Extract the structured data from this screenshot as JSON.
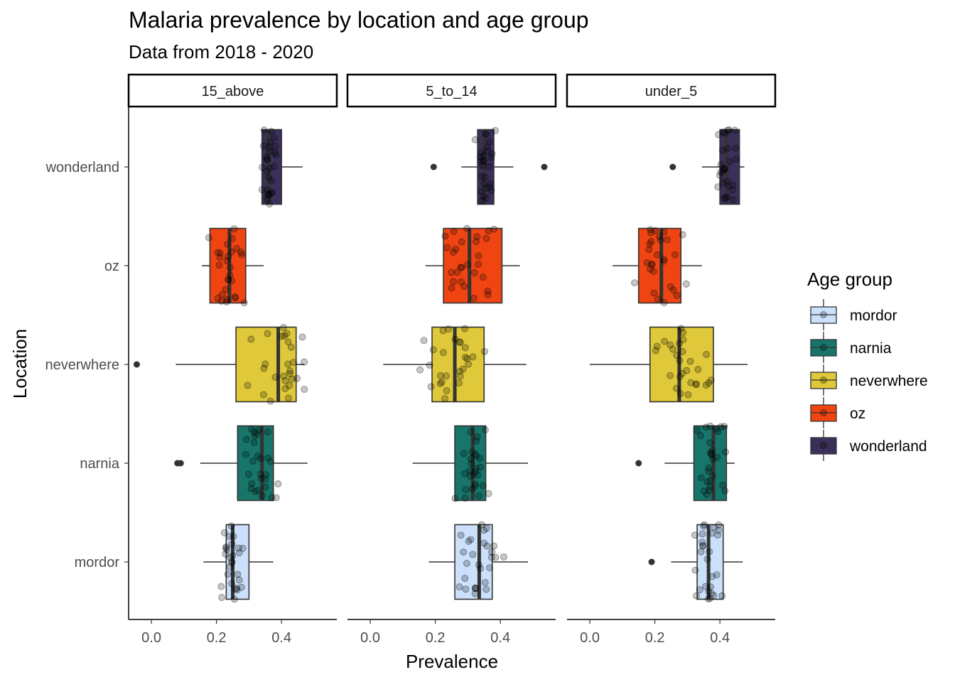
{
  "chart_data": {
    "type": "boxplot",
    "title": "Malaria prevalence by location and age group",
    "subtitle": "Data from 2018 - 2020",
    "xlabel": "Prevalence",
    "ylabel": "Location",
    "xlim": [
      -0.07,
      0.57
    ],
    "x_ticks": [
      0.0,
      0.2,
      0.4
    ],
    "x_tick_labels": [
      "0.0",
      "0.2",
      "0.4"
    ],
    "grid": false,
    "legend": {
      "title": "Age group",
      "position": "right",
      "entries": [
        "mordor",
        "narnia",
        "neverwhere",
        "oz",
        "wonderland"
      ]
    },
    "categories": [
      "wonderland",
      "oz",
      "neverwhere",
      "narnia",
      "mordor"
    ],
    "colors": {
      "mordor": "#cbe1fb",
      "narnia": "#17756a",
      "neverwhere": "#dfc839",
      "oz": "#f04512",
      "wonderland": "#3b2f5b"
    },
    "panels": [
      {
        "label": "15_above",
        "boxes": [
          {
            "location": "wonderland",
            "whisker_low": 0.34,
            "q1": 0.34,
            "median": 0.36,
            "q3": 0.4,
            "whisker_high": 0.465,
            "outliers": []
          },
          {
            "location": "oz",
            "whisker_low": 0.155,
            "q1": 0.18,
            "median": 0.24,
            "q3": 0.29,
            "whisker_high": 0.345,
            "outliers": []
          },
          {
            "location": "neverwhere",
            "whisker_low": 0.075,
            "q1": 0.26,
            "median": 0.39,
            "q3": 0.445,
            "whisker_high": 0.47,
            "outliers": [
              -0.045
            ]
          },
          {
            "location": "narnia",
            "whisker_low": 0.15,
            "q1": 0.265,
            "median": 0.34,
            "q3": 0.375,
            "whisker_high": 0.48,
            "outliers": [
              0.08,
              0.09
            ]
          },
          {
            "location": "mordor",
            "whisker_low": 0.16,
            "q1": 0.23,
            "median": 0.25,
            "q3": 0.3,
            "whisker_high": 0.375,
            "outliers": []
          }
        ]
      },
      {
        "label": "5_to_14",
        "boxes": [
          {
            "location": "wonderland",
            "whisker_low": 0.28,
            "q1": 0.33,
            "median": 0.35,
            "q3": 0.38,
            "whisker_high": 0.44,
            "outliers": [
              0.195,
              0.535
            ]
          },
          {
            "location": "oz",
            "whisker_low": 0.17,
            "q1": 0.225,
            "median": 0.305,
            "q3": 0.405,
            "whisker_high": 0.46,
            "outliers": []
          },
          {
            "location": "neverwhere",
            "whisker_low": 0.04,
            "q1": 0.19,
            "median": 0.26,
            "q3": 0.35,
            "whisker_high": 0.48,
            "outliers": []
          },
          {
            "location": "narnia",
            "whisker_low": 0.13,
            "q1": 0.26,
            "median": 0.315,
            "q3": 0.355,
            "whisker_high": 0.485,
            "outliers": []
          },
          {
            "location": "mordor",
            "whisker_low": 0.18,
            "q1": 0.26,
            "median": 0.335,
            "q3": 0.375,
            "whisker_high": 0.485,
            "outliers": []
          }
        ]
      },
      {
        "label": "under_5",
        "boxes": [
          {
            "location": "wonderland",
            "whisker_low": 0.345,
            "q1": 0.4,
            "median": 0.42,
            "q3": 0.46,
            "whisker_high": 0.475,
            "outliers": [
              0.255
            ]
          },
          {
            "location": "oz",
            "whisker_low": 0.07,
            "q1": 0.15,
            "median": 0.22,
            "q3": 0.28,
            "whisker_high": 0.345,
            "outliers": []
          },
          {
            "location": "neverwhere",
            "whisker_low": 0.0,
            "q1": 0.185,
            "median": 0.275,
            "q3": 0.38,
            "whisker_high": 0.485,
            "outliers": []
          },
          {
            "location": "narnia",
            "whisker_low": 0.23,
            "q1": 0.32,
            "median": 0.38,
            "q3": 0.42,
            "whisker_high": 0.445,
            "outliers": [
              0.15
            ]
          },
          {
            "location": "mordor",
            "whisker_low": 0.25,
            "q1": 0.33,
            "median": 0.365,
            "q3": 0.41,
            "whisker_high": 0.47,
            "outliers": [
              0.19
            ]
          }
        ]
      }
    ]
  }
}
